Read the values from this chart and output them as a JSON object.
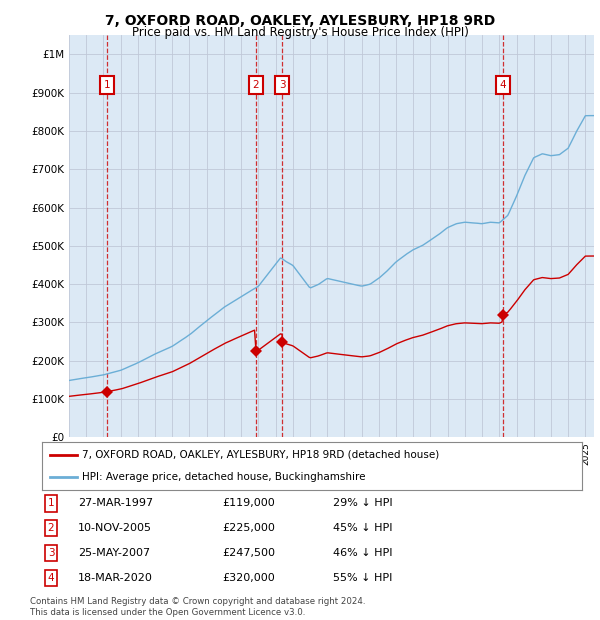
{
  "title": "7, OXFORD ROAD, OAKLEY, AYLESBURY, HP18 9RD",
  "subtitle": "Price paid vs. HM Land Registry's House Price Index (HPI)",
  "bg_color": "#dce9f5",
  "hpi_color": "#6baed6",
  "price_color": "#cc0000",
  "ylim": [
    0,
    1050000
  ],
  "yticks": [
    0,
    100000,
    200000,
    300000,
    400000,
    500000,
    600000,
    700000,
    800000,
    900000,
    1000000
  ],
  "ytick_labels": [
    "£0",
    "£100K",
    "£200K",
    "£300K",
    "£400K",
    "£500K",
    "£600K",
    "£700K",
    "£800K",
    "£900K",
    "£1M"
  ],
  "sales": [
    {
      "num": 1,
      "date": "27-MAR-1997",
      "year": 1997.23,
      "price": 119000,
      "pct": "29%"
    },
    {
      "num": 2,
      "date": "10-NOV-2005",
      "year": 2005.86,
      "price": 225000,
      "pct": "45%"
    },
    {
      "num": 3,
      "date": "25-MAY-2007",
      "year": 2007.4,
      "price": 247500,
      "pct": "46%"
    },
    {
      "num": 4,
      "date": "18-MAR-2020",
      "year": 2020.21,
      "price": 320000,
      "pct": "55%"
    }
  ],
  "legend_label_price": "7, OXFORD ROAD, OAKLEY, AYLESBURY, HP18 9RD (detached house)",
  "legend_label_hpi": "HPI: Average price, detached house, Buckinghamshire",
  "footer": "Contains HM Land Registry data © Crown copyright and database right 2024.\nThis data is licensed under the Open Government Licence v3.0.",
  "xmin": 1995,
  "xmax": 2025.5
}
